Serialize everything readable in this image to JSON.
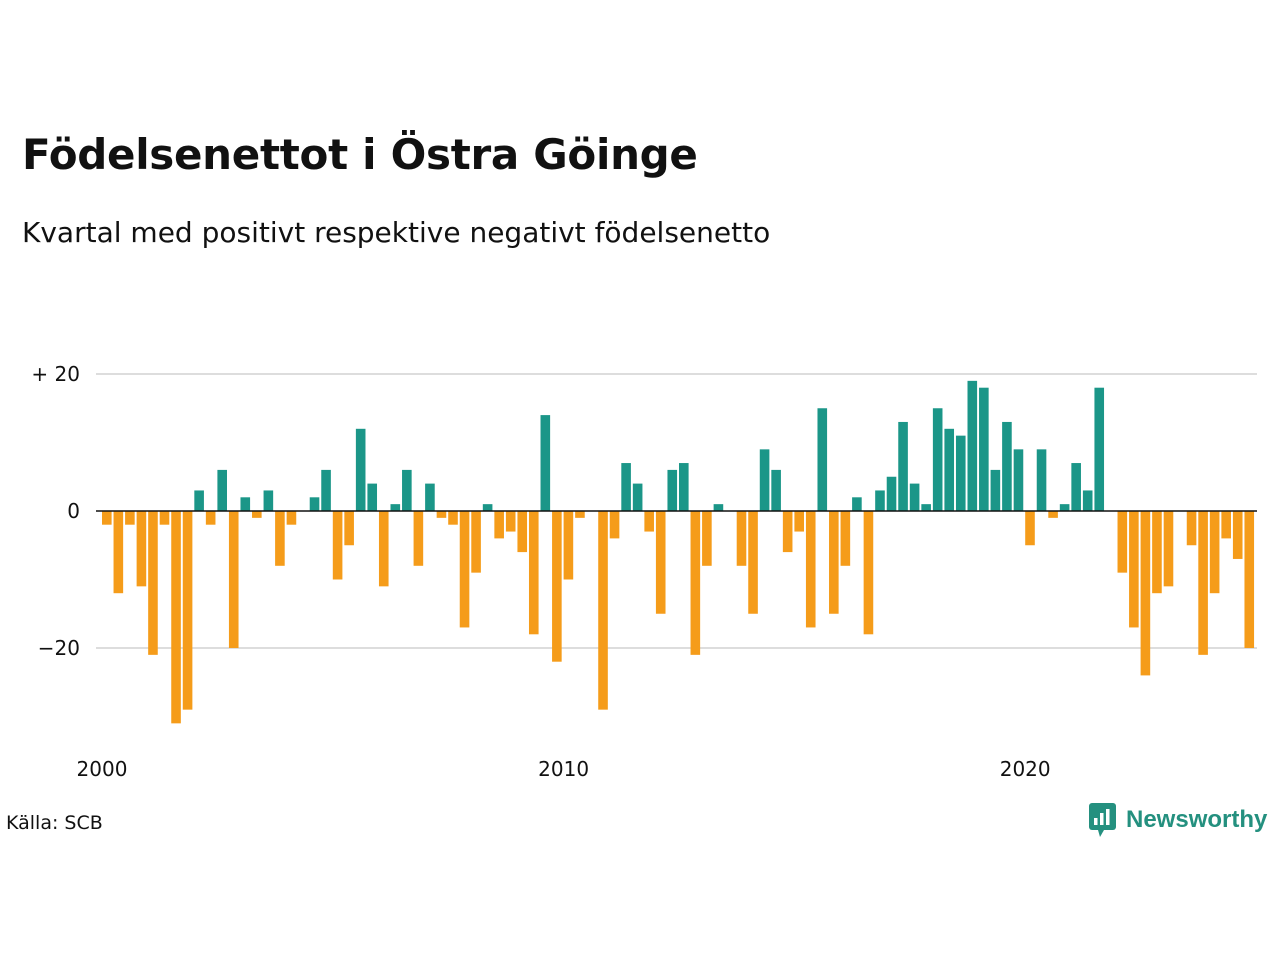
{
  "title": "Födelsenettot i Östra Göinge",
  "subtitle": "Kvartal med positivt respektive negativt födelsenetto",
  "source": "Källa: SCB",
  "logo": {
    "text": "Newsworthy",
    "icon": "newsworthy-logo-icon"
  },
  "colors": {
    "positive": "#1b9688",
    "negative": "#f59c1a",
    "gridline": "#dddddd",
    "zeroline": "#111111"
  },
  "chart_data": {
    "type": "bar",
    "title": "Födelsenettot i Östra Göinge",
    "subtitle": "Kvartal med positivt respektive negativt födelsenetto",
    "xlabel": "",
    "ylabel": "",
    "x_start": 2000.0,
    "x_step": 0.25,
    "x_ticks": [
      2000,
      2010,
      2020
    ],
    "x_tick_labels": [
      "2000",
      "2010",
      "2020"
    ],
    "y_ticks": [
      20,
      0,
      -20
    ],
    "y_tick_labels": [
      "+ 20",
      "0",
      "−20"
    ],
    "ylim": [
      -32,
      22
    ],
    "grid": "horizontal",
    "values": [
      -2,
      -12,
      -2,
      -11,
      -21,
      -2,
      -31,
      -29,
      3,
      -2,
      6,
      -20,
      2,
      -1,
      3,
      -8,
      -2,
      0,
      2,
      6,
      -10,
      -5,
      12,
      4,
      -11,
      1,
      6,
      -8,
      4,
      -1,
      -2,
      -17,
      -9,
      1,
      -4,
      -3,
      -6,
      -18,
      14,
      -22,
      -10,
      -1,
      0,
      -29,
      -4,
      7,
      4,
      -3,
      -15,
      6,
      7,
      -21,
      -8,
      1,
      0,
      -8,
      -15,
      9,
      6,
      -6,
      -3,
      -17,
      15,
      -15,
      -8,
      2,
      -18,
      3,
      5,
      13,
      4,
      1,
      15,
      12,
      11,
      19,
      18,
      6,
      13,
      9,
      -5,
      9,
      -1,
      1,
      7,
      3,
      18,
      0,
      -9,
      -17,
      -24,
      -12,
      -11,
      0,
      -5,
      -21,
      -12,
      -4,
      -7,
      -20
    ]
  }
}
